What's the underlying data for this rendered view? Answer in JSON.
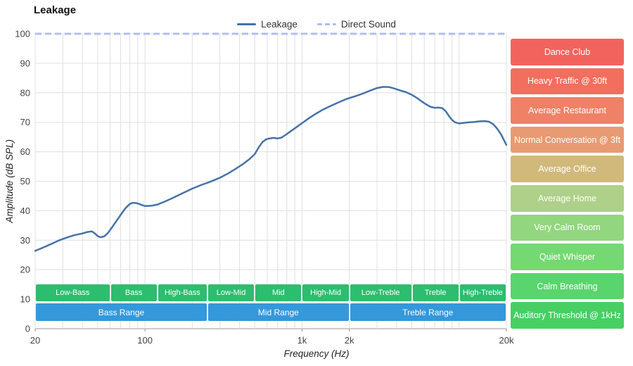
{
  "title": "Leakage",
  "legend": [
    {
      "label": "Leakage",
      "color": "#4572a7",
      "style": "solid"
    },
    {
      "label": "Direct Sound",
      "color": "#b2bdf5",
      "style": "dashed"
    }
  ],
  "axes": {
    "xlabel": "Frequency (Hz)",
    "ylabel": "Amplitude (dB SPL)",
    "x_scale": "log",
    "x_range": [
      20,
      20000
    ],
    "y_range": [
      0,
      100
    ],
    "x_ticks": [
      {
        "f": 20,
        "label": "20"
      },
      {
        "f": 100,
        "label": "100"
      },
      {
        "f": 1000,
        "label": "1k"
      },
      {
        "f": 2000,
        "label": "2k"
      },
      {
        "f": 20000,
        "label": "20k"
      }
    ],
    "y_ticks": [
      0,
      10,
      20,
      30,
      40,
      50,
      60,
      70,
      80,
      90,
      100
    ]
  },
  "chart_data": {
    "type": "line",
    "title": "Leakage",
    "xlabel": "Frequency (Hz)",
    "ylabel": "Amplitude (dB SPL)",
    "x_scale": "log",
    "xlim": [
      20,
      20000
    ],
    "ylim": [
      0,
      100
    ],
    "grid": true,
    "legend_position": "top-center",
    "series": [
      {
        "name": "Leakage",
        "color": "#4572a7",
        "style": "solid",
        "points": [
          [
            20,
            26.4
          ],
          [
            22,
            27.3
          ],
          [
            25,
            28.6
          ],
          [
            28,
            29.8
          ],
          [
            30,
            30.4
          ],
          [
            33,
            31.2
          ],
          [
            36,
            31.8
          ],
          [
            40,
            32.3
          ],
          [
            43,
            32.8
          ],
          [
            46,
            33.0
          ],
          [
            48,
            32.3
          ],
          [
            50,
            31.4
          ],
          [
            52,
            31.0
          ],
          [
            55,
            31.3
          ],
          [
            58,
            32.4
          ],
          [
            62,
            34.5
          ],
          [
            66,
            36.6
          ],
          [
            70,
            38.6
          ],
          [
            75,
            40.8
          ],
          [
            80,
            42.3
          ],
          [
            84,
            42.7
          ],
          [
            88,
            42.6
          ],
          [
            92,
            42.3
          ],
          [
            96,
            41.9
          ],
          [
            100,
            41.6
          ],
          [
            110,
            41.7
          ],
          [
            120,
            42.1
          ],
          [
            135,
            43.2
          ],
          [
            150,
            44.3
          ],
          [
            170,
            45.7
          ],
          [
            200,
            47.5
          ],
          [
            230,
            48.8
          ],
          [
            260,
            49.8
          ],
          [
            300,
            51.2
          ],
          [
            340,
            52.7
          ],
          [
            380,
            54.3
          ],
          [
            420,
            55.8
          ],
          [
            460,
            57.4
          ],
          [
            500,
            59.2
          ],
          [
            530,
            61.5
          ],
          [
            560,
            63.3
          ],
          [
            590,
            64.2
          ],
          [
            620,
            64.5
          ],
          [
            660,
            64.7
          ],
          [
            700,
            64.5
          ],
          [
            740,
            64.8
          ],
          [
            800,
            66.0
          ],
          [
            860,
            67.2
          ],
          [
            920,
            68.3
          ],
          [
            1000,
            69.7
          ],
          [
            1100,
            71.3
          ],
          [
            1200,
            72.6
          ],
          [
            1350,
            74.2
          ],
          [
            1500,
            75.4
          ],
          [
            1700,
            76.7
          ],
          [
            1900,
            77.8
          ],
          [
            2000,
            78.2
          ],
          [
            2200,
            78.9
          ],
          [
            2400,
            79.6
          ],
          [
            2700,
            80.7
          ],
          [
            3000,
            81.6
          ],
          [
            3300,
            82.0
          ],
          [
            3600,
            81.9
          ],
          [
            3900,
            81.4
          ],
          [
            4200,
            80.8
          ],
          [
            4600,
            80.2
          ],
          [
            5000,
            79.3
          ],
          [
            5400,
            78.2
          ],
          [
            5800,
            77.0
          ],
          [
            6200,
            76.0
          ],
          [
            6600,
            75.2
          ],
          [
            7000,
            74.9
          ],
          [
            7400,
            75.0
          ],
          [
            7800,
            74.8
          ],
          [
            8200,
            73.8
          ],
          [
            8600,
            72.2
          ],
          [
            9000,
            70.8
          ],
          [
            9400,
            70.0
          ],
          [
            10000,
            69.6
          ],
          [
            10800,
            69.8
          ],
          [
            11600,
            70.0
          ],
          [
            12500,
            70.1
          ],
          [
            13500,
            70.3
          ],
          [
            14500,
            70.4
          ],
          [
            15500,
            70.2
          ],
          [
            16500,
            69.3
          ],
          [
            17500,
            67.8
          ],
          [
            18500,
            65.9
          ],
          [
            19200,
            64.2
          ],
          [
            20000,
            62.3
          ]
        ]
      },
      {
        "name": "Direct Sound",
        "color": "#b2bdf5",
        "style": "dashed",
        "points": [
          [
            20,
            100
          ],
          [
            20000,
            100
          ]
        ]
      }
    ]
  },
  "bands": {
    "sub_color": "#2dbd6e",
    "range_color": "#3498db",
    "sub": [
      {
        "label": "Low-Bass",
        "from": 20,
        "to": 60
      },
      {
        "label": "Bass",
        "from": 60,
        "to": 120
      },
      {
        "label": "High-Bass",
        "from": 120,
        "to": 250
      },
      {
        "label": "Low-Mid",
        "from": 250,
        "to": 500
      },
      {
        "label": "Mid",
        "from": 500,
        "to": 1000
      },
      {
        "label": "High-Mid",
        "from": 1000,
        "to": 2000
      },
      {
        "label": "Low-Treble",
        "from": 2000,
        "to": 5000
      },
      {
        "label": "Treble",
        "from": 5000,
        "to": 10000
      },
      {
        "label": "High-Treble",
        "from": 10000,
        "to": 20000
      }
    ],
    "ranges": [
      {
        "label": "Bass Range",
        "from": 20,
        "to": 250
      },
      {
        "label": "Mid Range",
        "from": 250,
        "to": 2000
      },
      {
        "label": "Treble Range",
        "from": 2000,
        "to": 20000
      }
    ]
  },
  "noise_levels": [
    {
      "label": "Dance Club",
      "color": "#f2635d"
    },
    {
      "label": "Heavy Traffic @ 30ft",
      "color": "#f26e5e"
    },
    {
      "label": "Average Restaurant",
      "color": "#ef8166"
    },
    {
      "label": "Normal Conversation @ 3ft",
      "color": "#e89a72"
    },
    {
      "label": "Average Office",
      "color": "#d1b97c"
    },
    {
      "label": "Average Home",
      "color": "#afd088"
    },
    {
      "label": "Very Calm Room",
      "color": "#92d67f"
    },
    {
      "label": "Quiet Whisper",
      "color": "#74d873"
    },
    {
      "label": "Calm Breathing",
      "color": "#5ad46d"
    },
    {
      "label": "Auditory Threshold @ 1kHz",
      "color": "#47cf63"
    }
  ]
}
